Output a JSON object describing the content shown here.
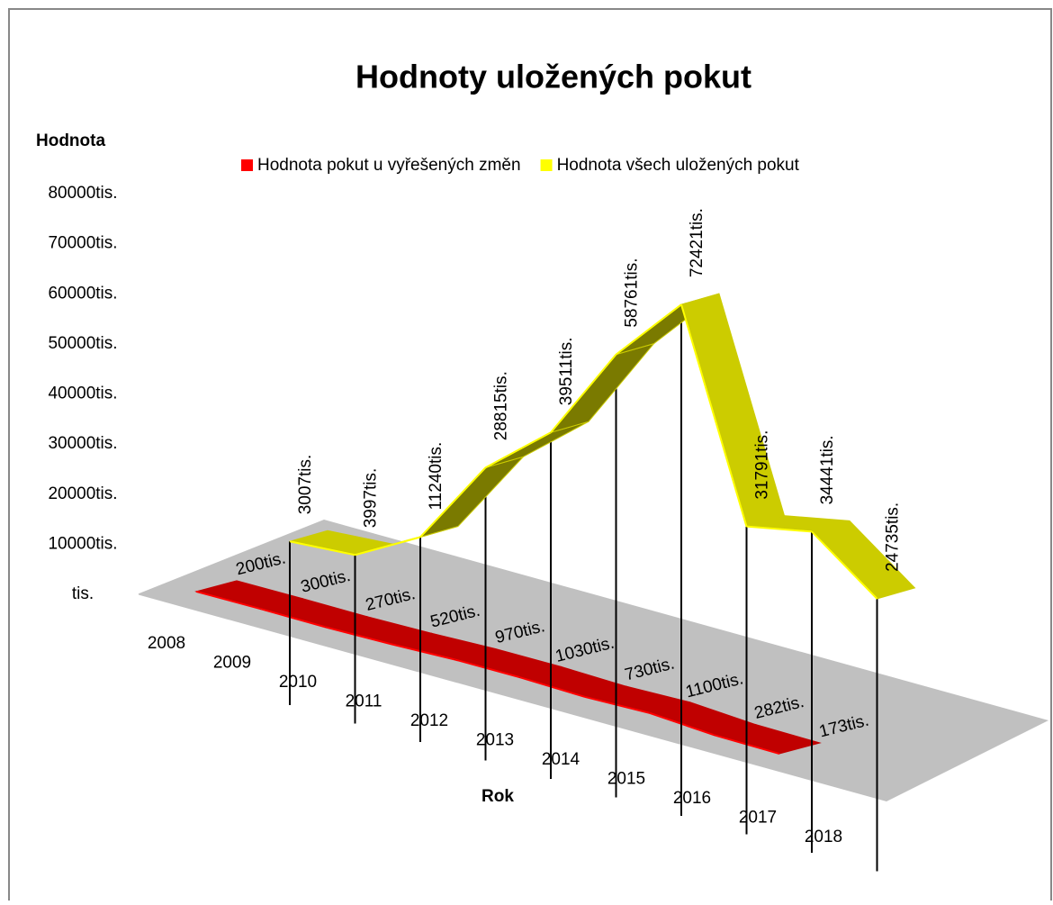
{
  "chart_data": {
    "type": "line3d",
    "title": "Hodnoty  uložených pokut",
    "y_label": "Hodnota",
    "x_label": "Rok",
    "categories": [
      "2008",
      "2009",
      "2010",
      "2011",
      "2012",
      "2013",
      "2014",
      "2015",
      "2016",
      "2017",
      "2018"
    ],
    "ylim": [
      0,
      80000
    ],
    "yticks": [
      {
        "value": 0,
        "label": "tis."
      },
      {
        "value": 10000,
        "label": "10000tis."
      },
      {
        "value": 20000,
        "label": "20000tis."
      },
      {
        "value": 30000,
        "label": "30000tis."
      },
      {
        "value": 40000,
        "label": "40000tis."
      },
      {
        "value": 50000,
        "label": "50000tis."
      },
      {
        "value": 60000,
        "label": "60000tis."
      },
      {
        "value": 70000,
        "label": "70000tis."
      },
      {
        "value": 80000,
        "label": "80000tis."
      }
    ],
    "series": [
      {
        "name": "Hodnota pokut u vyřešených změn",
        "color": "#ff0000",
        "values": [
          200,
          300,
          270,
          520,
          970,
          1030,
          730,
          1100,
          282,
          173,
          null
        ],
        "value_labels": [
          "200tis.",
          "300tis.",
          "270tis.",
          "520tis.",
          "970tis.",
          "1030tis.",
          "730tis.",
          "1100tis.",
          "282tis.",
          "173tis.",
          null
        ]
      },
      {
        "name": "Hodnota všech uložených pokut",
        "color": "#ffff00",
        "values": [
          3007,
          3997,
          11240,
          28815,
          39511,
          58761,
          72421,
          31791,
          34441,
          24735,
          null
        ],
        "value_labels": [
          "3007tis.",
          "3997tis.",
          "11240tis.",
          "28815tis.",
          "39511tis.",
          "58761tis.",
          "72421tis.",
          "31791tis.",
          "34441tis.",
          "24735tis.",
          null
        ]
      }
    ]
  }
}
